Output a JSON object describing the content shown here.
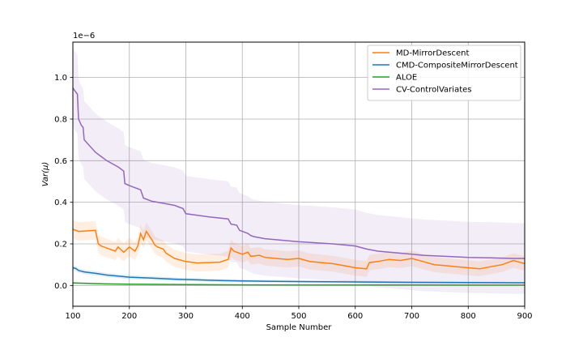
{
  "chart_data": {
    "type": "line",
    "title": "",
    "xlabel": "Sample Number",
    "ylabel": "Var(μ)",
    "y_offset_label": "1e−6",
    "xlim": [
      100,
      900
    ],
    "ylim": [
      -1e-07,
      1.17e-06
    ],
    "xticks": [
      100,
      200,
      300,
      400,
      500,
      600,
      700,
      800,
      900
    ],
    "xtick_labels": [
      "100",
      "200",
      "300",
      "400",
      "500",
      "600",
      "700",
      "800",
      "900"
    ],
    "yticks": [
      0,
      2e-07,
      4e-07,
      6e-07,
      8e-07,
      1e-06
    ],
    "ytick_labels": [
      "0.0",
      "0.2",
      "0.4",
      "0.6",
      "0.8",
      "1.0"
    ],
    "grid": true,
    "legend_position": "top-right",
    "series": [
      {
        "name": "MD-MirrorDescent",
        "color": "#ff7f0e",
        "x": [
          100,
          110,
          140,
          145,
          150,
          175,
          180,
          190,
          200,
          210,
          215,
          220,
          225,
          230,
          240,
          245,
          250,
          260,
          265,
          280,
          300,
          320,
          340,
          360,
          375,
          380,
          385,
          400,
          410,
          415,
          430,
          440,
          460,
          480,
          500,
          520,
          540,
          560,
          580,
          600,
          620,
          625,
          640,
          660,
          680,
          700,
          720,
          740,
          760,
          780,
          800,
          820,
          840,
          860,
          880,
          900
        ],
        "y": [
          2.7e-07,
          2.6e-07,
          2.65e-07,
          2e-07,
          1.9e-07,
          1.65e-07,
          1.85e-07,
          1.6e-07,
          1.85e-07,
          1.65e-07,
          1.9e-07,
          2.5e-07,
          2.2e-07,
          2.6e-07,
          2.2e-07,
          1.95e-07,
          1.85e-07,
          1.75e-07,
          1.55e-07,
          1.3e-07,
          1.15e-07,
          1.08e-07,
          1.1e-07,
          1.12e-07,
          1.25e-07,
          1.8e-07,
          1.65e-07,
          1.5e-07,
          1.6e-07,
          1.4e-07,
          1.45e-07,
          1.35e-07,
          1.3e-07,
          1.25e-07,
          1.3e-07,
          1.15e-07,
          1.1e-07,
          1.05e-07,
          9.5e-08,
          8.5e-08,
          8e-08,
          1.1e-07,
          1.15e-07,
          1.25e-07,
          1.2e-07,
          1.3e-07,
          1.15e-07,
          1e-07,
          9.5e-08,
          9e-08,
          8.5e-08,
          8e-08,
          9e-08,
          1e-07,
          1.2e-07,
          1.05e-07
        ],
        "band": [
          4.5e-08,
          3.5e-08
        ]
      },
      {
        "name": "CMD-CompositeMirrorDescent",
        "color": "#1f77b4",
        "x": [
          100,
          105,
          110,
          120,
          140,
          160,
          180,
          200,
          240,
          280,
          320,
          360,
          400,
          450,
          500,
          550,
          600,
          650,
          700,
          750,
          800,
          850,
          900
        ],
        "y": [
          8.5e-08,
          8.2e-08,
          7.2e-08,
          6.5e-08,
          5.8e-08,
          5e-08,
          4.5e-08,
          4e-08,
          3.5e-08,
          3e-08,
          2.7e-08,
          2.4e-08,
          2.2e-08,
          2e-08,
          1.9e-08,
          1.8e-08,
          1.7e-08,
          1.6e-08,
          1.5e-08,
          1.45e-08,
          1.4e-08,
          1.35e-08,
          1.3e-08
        ],
        "band": [
          1.2e-08,
          4e-09
        ]
      },
      {
        "name": "ALOE",
        "color": "#2ca02c",
        "x": [
          100,
          150,
          200,
          300,
          400,
          500,
          600,
          700,
          800,
          900
        ],
        "y": [
          1.2e-08,
          8e-09,
          6e-09,
          4e-09,
          3e-09,
          2.5e-09,
          2e-09,
          2e-09,
          1.5e-09,
          1.5e-09
        ],
        "band": [
          5e-09,
          2e-09
        ]
      },
      {
        "name": "CV-ControlVariates",
        "color": "#9467bd",
        "x": [
          100,
          105,
          108,
          110,
          115,
          118,
          120,
          140,
          160,
          180,
          190,
          192,
          200,
          220,
          225,
          240,
          260,
          280,
          295,
          300,
          340,
          375,
          380,
          390,
          395,
          400,
          410,
          415,
          420,
          440,
          460,
          480,
          500,
          520,
          560,
          580,
          600,
          620,
          640,
          660,
          680,
          700,
          720,
          760,
          800,
          840,
          880,
          900
        ],
        "y": [
          9.5e-07,
          9.3e-07,
          9.2e-07,
          8e-07,
          7.7e-07,
          7.6e-07,
          7e-07,
          6.4e-07,
          6e-07,
          5.7e-07,
          5.5e-07,
          4.9e-07,
          4.8e-07,
          4.6e-07,
          4.2e-07,
          4.05e-07,
          3.95e-07,
          3.85e-07,
          3.7e-07,
          3.45e-07,
          3.3e-07,
          3.2e-07,
          2.95e-07,
          2.9e-07,
          2.65e-07,
          2.6e-07,
          2.5e-07,
          2.4e-07,
          2.35e-07,
          2.25e-07,
          2.2e-07,
          2.15e-07,
          2.1e-07,
          2.07e-07,
          2e-07,
          1.95e-07,
          1.9e-07,
          1.75e-07,
          1.65e-07,
          1.6e-07,
          1.55e-07,
          1.5e-07,
          1.45e-07,
          1.4e-07,
          1.35e-07,
          1.33e-07,
          1.3e-07,
          1.3e-07
        ],
        "band": [
          1.9e-07,
          1.7e-07
        ]
      }
    ]
  }
}
